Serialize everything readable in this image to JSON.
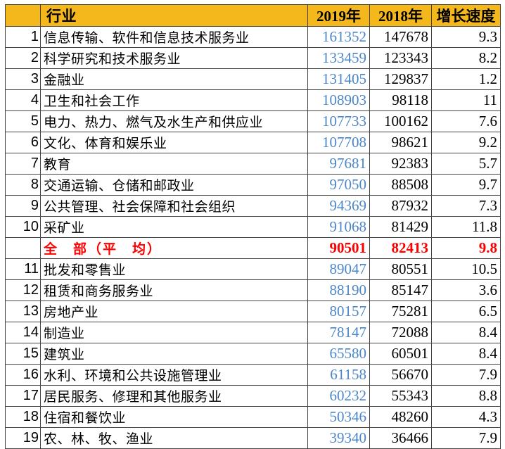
{
  "header": {
    "rank": "",
    "industry": "行业",
    "y2019": "2019年",
    "y2018": "2018年",
    "growth": "增长速度"
  },
  "colors": {
    "header_bg": "#f5b81c",
    "y2019_text": "#4a86c8",
    "highlight_text": "#ff0000"
  },
  "rows": [
    {
      "rank": "1",
      "industry": "信息传输、软件和信息技术服务业",
      "y2019": "161352",
      "y2018": "147678",
      "growth": "9.3"
    },
    {
      "rank": "2",
      "industry": "科学研究和技术服务业",
      "y2019": "133459",
      "y2018": "123343",
      "growth": "8.2"
    },
    {
      "rank": "3",
      "industry": "金融业",
      "y2019": "131405",
      "y2018": "129837",
      "growth": "1.2"
    },
    {
      "rank": "4",
      "industry": "卫生和社会工作",
      "y2019": "108903",
      "y2018": "98118",
      "growth": "11"
    },
    {
      "rank": "5",
      "industry": "电力、热力、燃气及水生产和供应业",
      "y2019": "107733",
      "y2018": "100162",
      "growth": "7.6"
    },
    {
      "rank": "6",
      "industry": "文化、体育和娱乐业",
      "y2019": "107708",
      "y2018": "98621",
      "growth": "9.2"
    },
    {
      "rank": "7",
      "industry": "教育",
      "y2019": "97681",
      "y2018": "92383",
      "growth": "5.7"
    },
    {
      "rank": "8",
      "industry": "交通运输、仓储和邮政业",
      "y2019": "97050",
      "y2018": "88508",
      "growth": "9.7"
    },
    {
      "rank": "9",
      "industry": "公共管理、社会保障和社会组织",
      "y2019": "94369",
      "y2018": "87932",
      "growth": "7.3"
    },
    {
      "rank": "10",
      "industry": "采矿业",
      "y2019": "91068",
      "y2018": "81429",
      "growth": "11.8"
    },
    {
      "rank": "",
      "industry": "全　部（平　均）",
      "y2019": "90501",
      "y2018": "82413",
      "growth": "9.8",
      "highlight": true
    },
    {
      "rank": "11",
      "industry": "批发和零售业",
      "y2019": "89047",
      "y2018": "80551",
      "growth": "10.5"
    },
    {
      "rank": "12",
      "industry": "租赁和商务服务业",
      "y2019": "88190",
      "y2018": "85147",
      "growth": "3.6"
    },
    {
      "rank": "13",
      "industry": "房地产业",
      "y2019": "80157",
      "y2018": "75281",
      "growth": "6.5"
    },
    {
      "rank": "14",
      "industry": "制造业",
      "y2019": "78147",
      "y2018": "72088",
      "growth": "8.4"
    },
    {
      "rank": "15",
      "industry": "建筑业",
      "y2019": "65580",
      "y2018": "60501",
      "growth": "8.4"
    },
    {
      "rank": "16",
      "industry": "水利、环境和公共设施管理业",
      "y2019": "61158",
      "y2018": "56670",
      "growth": "7.9"
    },
    {
      "rank": "17",
      "industry": "居民服务、修理和其他服务业",
      "y2019": "60232",
      "y2018": "55343",
      "growth": "8.8"
    },
    {
      "rank": "18",
      "industry": "住宿和餐饮业",
      "y2019": "50346",
      "y2018": "48260",
      "growth": "4.3"
    },
    {
      "rank": "19",
      "industry": "农、林、牧、渔业",
      "y2019": "39340",
      "y2018": "36466",
      "growth": "7.9"
    }
  ]
}
